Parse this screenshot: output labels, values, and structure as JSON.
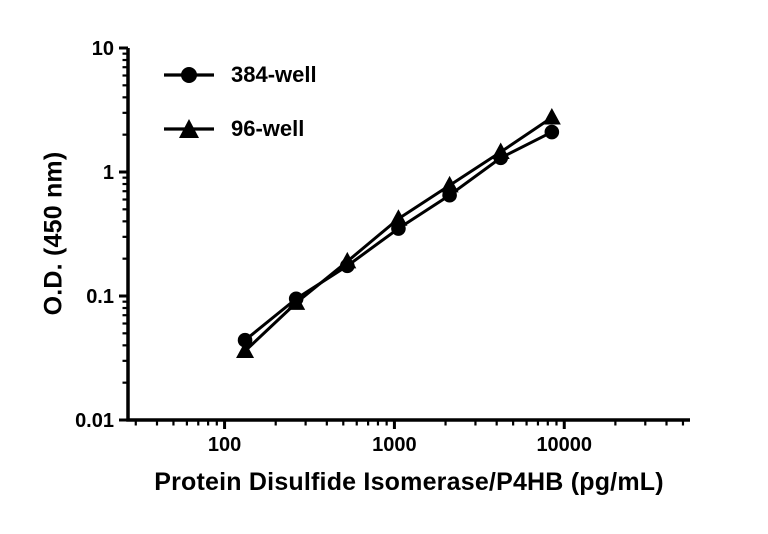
{
  "chart_data": {
    "type": "line",
    "title": "",
    "xlabel": "Protein Disulfide Isomerase/P4HB (pg/mL)",
    "ylabel": "O.D. (450 nm)",
    "x_scale": "log",
    "y_scale": "log",
    "xlim": [
      27,
      55000
    ],
    "ylim": [
      0.01,
      10
    ],
    "x_major_ticks": [
      100,
      1000,
      10000
    ],
    "x_tick_labels": [
      "100",
      "1000",
      "10000"
    ],
    "y_major_ticks": [
      0.01,
      0.1,
      1,
      10
    ],
    "y_tick_labels": [
      "0.01",
      "0.1",
      "1",
      "10"
    ],
    "grid": "off",
    "legend_position": "top-left-inside",
    "line_color": "#000000",
    "series": [
      {
        "name": "384-well",
        "marker": "circle",
        "color": "#000000",
        "x": [
          132,
          264,
          528,
          1056,
          2113,
          4225,
          8450
        ],
        "y": [
          0.044,
          0.095,
          0.175,
          0.35,
          0.65,
          1.3,
          2.1
        ]
      },
      {
        "name": "96-well",
        "marker": "triangle",
        "color": "#000000",
        "x": [
          132,
          264,
          528,
          1056,
          2113,
          4225,
          8450
        ],
        "y": [
          0.036,
          0.088,
          0.19,
          0.42,
          0.78,
          1.45,
          2.75
        ]
      }
    ]
  }
}
